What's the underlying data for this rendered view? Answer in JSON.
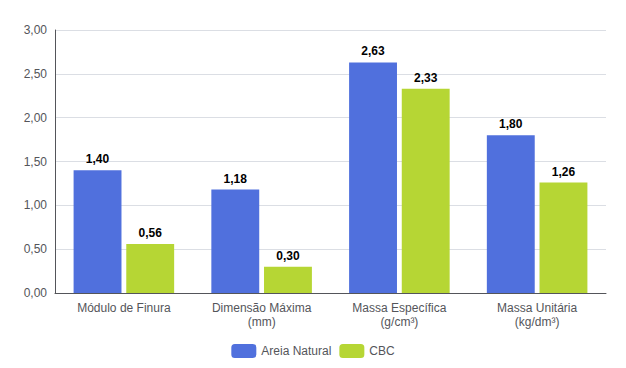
{
  "chart_data": {
    "type": "bar",
    "categories": [
      "Módulo de Finura",
      "Dimensão Máxima\n(mm)",
      "Massa Específica\n(g/cm³)",
      "Massa Unitária\n(kg/dm³)"
    ],
    "series": [
      {
        "name": "Areia Natural",
        "values": [
          1.4,
          1.18,
          2.63,
          1.8
        ],
        "value_labels": [
          "1,40",
          "1,18",
          "2,63",
          "1,80"
        ]
      },
      {
        "name": "CBC",
        "values": [
          0.56,
          0.3,
          2.33,
          1.26
        ],
        "value_labels": [
          "0,56",
          "0,30",
          "2,33",
          "1,26"
        ]
      }
    ],
    "ylim": [
      0,
      3.0
    ],
    "yticks": [
      {
        "value": 0.0,
        "label": "0,00"
      },
      {
        "value": 0.5,
        "label": "0,50"
      },
      {
        "value": 1.0,
        "label": "1,00"
      },
      {
        "value": 1.5,
        "label": "1,50"
      },
      {
        "value": 2.0,
        "label": "2,00"
      },
      {
        "value": 2.5,
        "label": "2,50"
      },
      {
        "value": 3.0,
        "label": "3,00"
      }
    ],
    "grid": true,
    "legend": "bottom",
    "data_labels": true
  }
}
